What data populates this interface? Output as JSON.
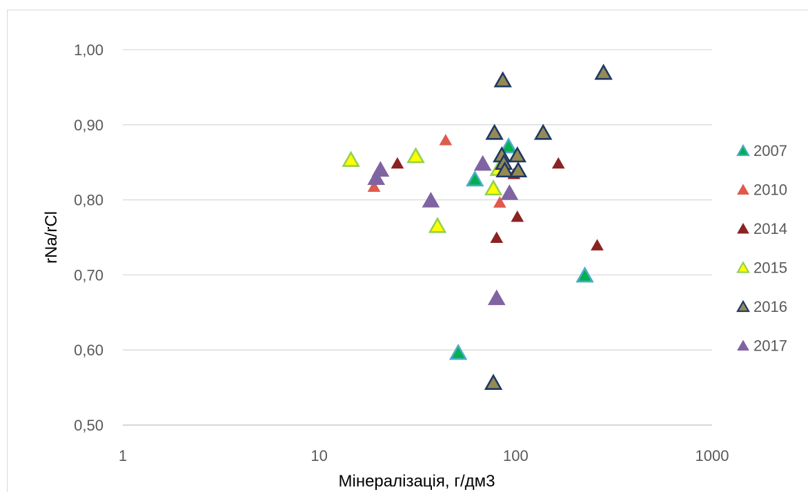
{
  "chart_data": {
    "type": "scatter",
    "xlabel": "Мінералізація, г/дм3",
    "ylabel": "rNa/rCl",
    "x_scale": "log",
    "xlim": [
      1,
      1000
    ],
    "ylim": [
      0.5,
      1.0
    ],
    "x_ticks": [
      "1",
      "10",
      "100",
      "1000"
    ],
    "y_ticks": [
      "0,50",
      "0,60",
      "0,70",
      "0,80",
      "0,90",
      "1,00"
    ],
    "grid": "horizontal",
    "legend_position": "right",
    "series": [
      {
        "name": "2007",
        "fill": "#00b050",
        "stroke": "#4bacc6",
        "points": [
          [
            51,
            0.597
          ],
          [
            62,
            0.828
          ],
          [
            92,
            0.872
          ],
          [
            225,
            0.7
          ]
        ]
      },
      {
        "name": "2010",
        "fill": "#e05a4b",
        "stroke": "#e05a4b",
        "points": [
          [
            19,
            0.818
          ],
          [
            44,
            0.88
          ],
          [
            83,
            0.797
          ]
        ]
      },
      {
        "name": "2014",
        "fill": "#8b2323",
        "stroke": "#8b2323",
        "points": [
          [
            25,
            0.849
          ],
          [
            80,
            0.75
          ],
          [
            98,
            0.835
          ],
          [
            102,
            0.778
          ],
          [
            165,
            0.849
          ],
          [
            260,
            0.74
          ]
        ]
      },
      {
        "name": "2015",
        "fill": "#ffff00",
        "stroke": "#92d050",
        "points": [
          [
            14.5,
            0.854
          ],
          [
            31,
            0.859
          ],
          [
            40,
            0.766
          ],
          [
            77,
            0.816
          ],
          [
            82,
            0.842
          ]
        ]
      },
      {
        "name": "2016",
        "fill": "#948a54",
        "stroke": "#1f3864",
        "points": [
          [
            77,
            0.557
          ],
          [
            78,
            0.89
          ],
          [
            86,
            0.96
          ],
          [
            85,
            0.86
          ],
          [
            87,
            0.85
          ],
          [
            88,
            0.84
          ],
          [
            102,
            0.86
          ],
          [
            103,
            0.84
          ],
          [
            138,
            0.89
          ],
          [
            280,
            0.97
          ]
        ]
      },
      {
        "name": "2017",
        "fill": "#8064a2",
        "stroke": "#8064a2",
        "points": [
          [
            19.5,
            0.83
          ],
          [
            20.5,
            0.841
          ],
          [
            37,
            0.8
          ],
          [
            68,
            0.849
          ],
          [
            80,
            0.67
          ],
          [
            93,
            0.81
          ]
        ]
      }
    ]
  }
}
